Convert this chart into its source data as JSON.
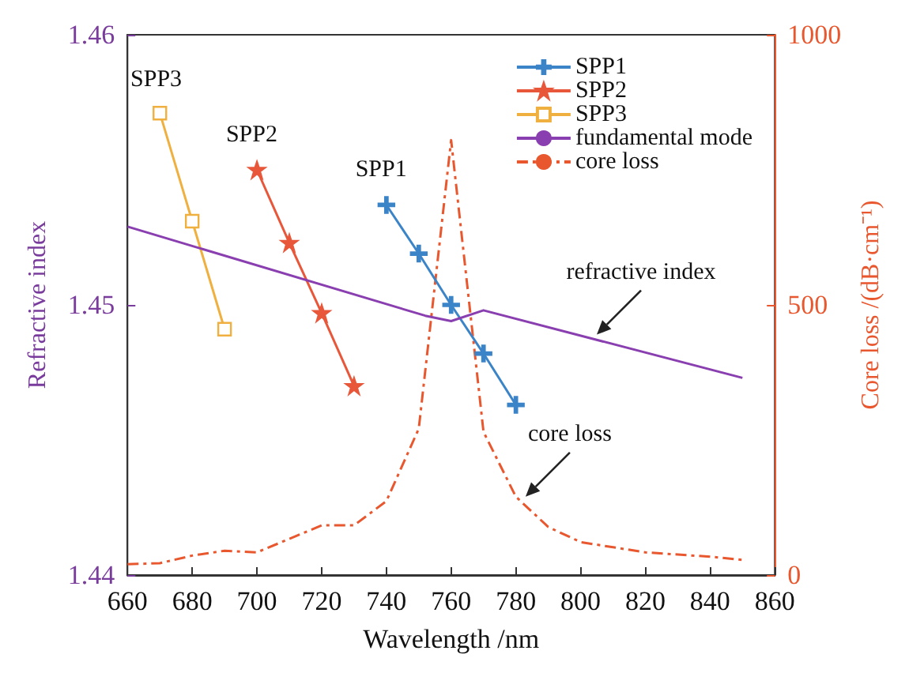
{
  "chart_data": {
    "type": "line",
    "xlabel": "Wavelength /nm",
    "ylabel": "Refractive index",
    "y2label": "Core loss /(dB·cm⁻¹)",
    "xlim": [
      660,
      860
    ],
    "xticks": [
      660,
      680,
      700,
      720,
      740,
      760,
      780,
      800,
      820,
      840,
      860
    ],
    "ylim": [
      1.44,
      1.46
    ],
    "yticks": [
      1.44,
      1.45,
      1.46
    ],
    "y2lim": [
      0,
      1000
    ],
    "y2ticks": [
      0,
      500,
      1000
    ],
    "legend": "top right",
    "grid": false,
    "line_style": "solid",
    "series": [
      {
        "name": "SPP1",
        "color": "#3c84c8",
        "marker": "cross",
        "x": [
          740,
          750,
          760,
          770,
          780
        ],
        "values": [
          1.4537,
          1.4519,
          1.45,
          1.4482,
          1.4463
        ]
      },
      {
        "name": "SPP2",
        "color": "#e8573a",
        "marker": "star",
        "x": [
          700,
          710,
          720,
          730
        ],
        "values": [
          1.455,
          1.4523,
          1.4497,
          1.447
        ]
      },
      {
        "name": "SPP3",
        "color": "#f0b040",
        "marker": "square",
        "x": [
          670,
          680,
          690
        ],
        "values": [
          1.4571,
          1.4531,
          1.4491
        ]
      },
      {
        "name": "fundamental mode",
        "color": "#8a3fb0",
        "marker": "none",
        "x": [
          660,
          752,
          760,
          770,
          850
        ],
        "values": [
          1.4529,
          1.4496,
          1.4494,
          1.4498,
          1.4473
        ]
      },
      {
        "name": "core loss",
        "color": "#e8572e",
        "marker": "none",
        "line_style": "dashed",
        "axis": "y2",
        "x": [
          660,
          670,
          680,
          690,
          700,
          710,
          720,
          730,
          740,
          750,
          760,
          770,
          780,
          790,
          800,
          820,
          840,
          850
        ],
        "values": [
          20,
          22,
          36,
          45,
          42,
          67,
          92,
          92,
          137,
          271,
          805,
          265,
          145,
          89,
          61,
          42,
          34,
          28
        ]
      }
    ],
    "annotations": [
      {
        "text": "refractive index",
        "x": 805,
        "y": 1.4489
      },
      {
        "text": "core loss",
        "x": 783,
        "y": 1.4429
      }
    ]
  }
}
